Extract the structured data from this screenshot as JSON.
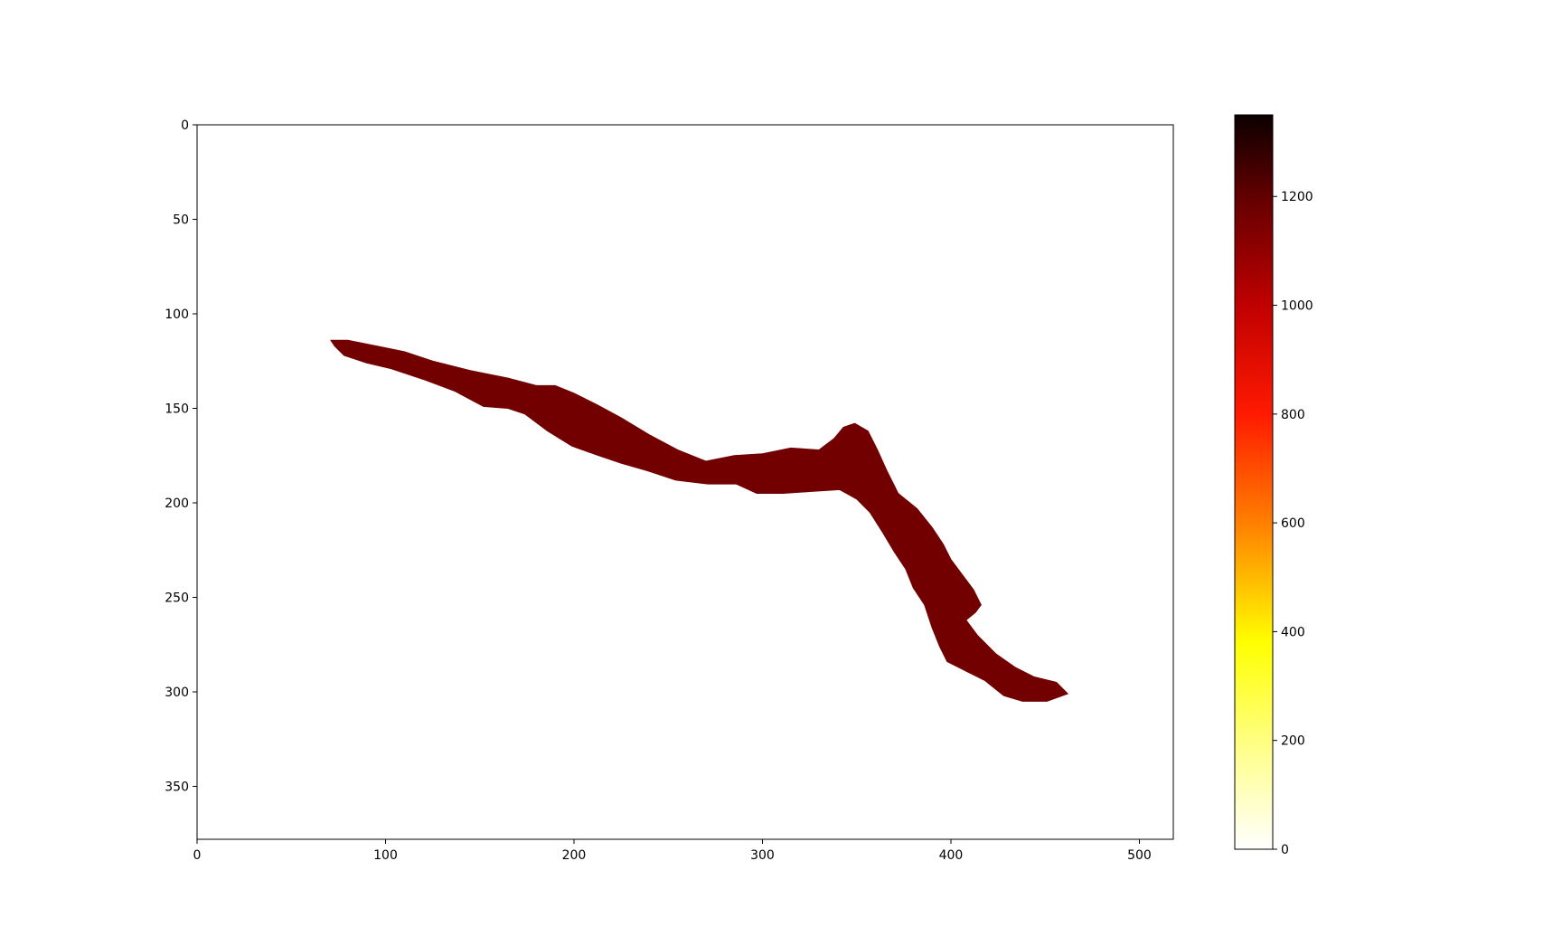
{
  "chart_data": {
    "type": "heatmap",
    "title": "",
    "xlabel": "",
    "ylabel": "",
    "image_shape": [
      378,
      518
    ],
    "xlim": [
      0,
      518
    ],
    "ylim": [
      378,
      0
    ],
    "y_axis_inverted": true,
    "x_ticks": [
      0,
      100,
      200,
      300,
      400,
      500
    ],
    "x_tick_labels": [
      "0",
      "100",
      "200",
      "300",
      "400",
      "500"
    ],
    "y_ticks": [
      0,
      50,
      100,
      150,
      200,
      250,
      300,
      350
    ],
    "y_tick_labels": [
      "0",
      "50",
      "100",
      "150",
      "200",
      "250",
      "300",
      "350"
    ],
    "grid": false,
    "colormap": "hot_r",
    "region_value": 1150,
    "region_color": "#720000",
    "background": "no data (white)",
    "region_outline": [
      [
        71,
        114
      ],
      [
        80,
        114
      ],
      [
        95,
        117
      ],
      [
        110,
        120
      ],
      [
        125,
        125
      ],
      [
        145,
        130
      ],
      [
        165,
        134
      ],
      [
        180,
        138
      ],
      [
        190,
        138
      ],
      [
        200,
        142
      ],
      [
        212,
        148
      ],
      [
        225,
        155
      ],
      [
        240,
        164
      ],
      [
        255,
        172
      ],
      [
        270,
        178
      ],
      [
        285,
        175
      ],
      [
        300,
        174
      ],
      [
        315,
        171
      ],
      [
        330,
        172
      ],
      [
        338,
        166
      ],
      [
        343,
        160
      ],
      [
        349,
        158
      ],
      [
        356,
        162
      ],
      [
        361,
        172
      ],
      [
        366,
        183
      ],
      [
        372,
        195
      ],
      [
        382,
        203
      ],
      [
        390,
        213
      ],
      [
        396,
        222
      ],
      [
        400,
        230
      ],
      [
        406,
        238
      ],
      [
        412,
        246
      ],
      [
        416,
        254
      ],
      [
        413,
        258
      ],
      [
        408,
        262
      ],
      [
        414,
        270
      ],
      [
        424,
        280
      ],
      [
        434,
        287
      ],
      [
        444,
        292
      ],
      [
        456,
        295
      ],
      [
        462,
        301
      ],
      [
        451,
        305
      ],
      [
        438,
        305
      ],
      [
        428,
        302
      ],
      [
        418,
        294
      ],
      [
        408,
        289
      ],
      [
        398,
        284
      ],
      [
        394,
        276
      ],
      [
        390,
        266
      ],
      [
        386,
        254
      ],
      [
        380,
        245
      ],
      [
        376,
        235
      ],
      [
        370,
        226
      ],
      [
        364,
        216
      ],
      [
        357,
        205
      ],
      [
        350,
        198
      ],
      [
        341,
        193
      ],
      [
        326,
        194
      ],
      [
        311,
        195
      ],
      [
        297,
        195
      ],
      [
        286,
        190
      ],
      [
        271,
        190
      ],
      [
        254,
        188
      ],
      [
        239,
        183
      ],
      [
        225,
        179
      ],
      [
        213,
        175
      ],
      [
        199,
        170
      ],
      [
        186,
        162
      ],
      [
        174,
        153
      ],
      [
        165,
        150
      ],
      [
        152,
        149
      ],
      [
        137,
        141
      ],
      [
        121,
        135
      ],
      [
        103,
        129
      ],
      [
        90,
        126
      ],
      [
        78,
        122
      ],
      [
        73,
        117
      ]
    ],
    "colorbar": {
      "vmin": 0,
      "vmax": 1350,
      "ticks": [
        0,
        200,
        400,
        600,
        800,
        1000,
        1200
      ],
      "tick_labels": [
        "0",
        "200",
        "400",
        "600",
        "800",
        "1000",
        "1200"
      ],
      "gradient_stops": [
        {
          "value": 0,
          "color": "#ffffff"
        },
        {
          "value": 200,
          "color": "#ffff80"
        },
        {
          "value": 380,
          "color": "#ffff00"
        },
        {
          "value": 600,
          "color": "#ff7f00"
        },
        {
          "value": 800,
          "color": "#ff1a00"
        },
        {
          "value": 1000,
          "color": "#c00000"
        },
        {
          "value": 1200,
          "color": "#620000"
        },
        {
          "value": 1350,
          "color": "#0b0000"
        }
      ]
    }
  }
}
